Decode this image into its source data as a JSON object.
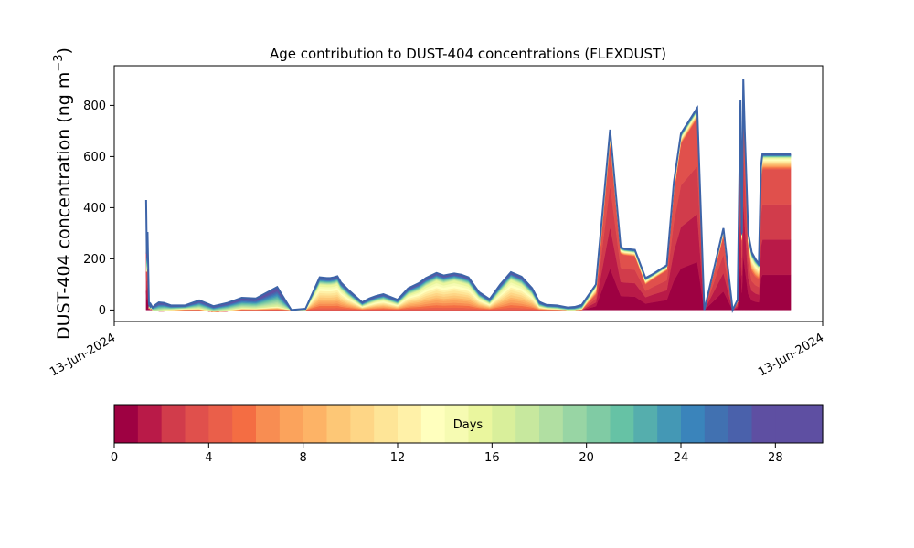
{
  "chart_data": {
    "type": "area",
    "title": "Age contribution to DUST-404 concentrations (FLEXDUST)",
    "ylabel": "DUST-404 concentration (ng m",
    "ylabel_sup": "−3",
    "ylabel_close": ")",
    "xlabel": "",
    "x_ticks": [
      "13-Jun-2024",
      "13-Jun-2024"
    ],
    "y_ticks": [
      0,
      200,
      400,
      600,
      800
    ],
    "ylim": [
      -45,
      955
    ],
    "xlim": [
      0,
      1
    ],
    "grid": false,
    "x": [
      0.045,
      0.046,
      0.047,
      0.049,
      0.05,
      0.051,
      0.052,
      0.054,
      0.058,
      0.063,
      0.07,
      0.08,
      0.1,
      0.12,
      0.14,
      0.16,
      0.18,
      0.2,
      0.23,
      0.25,
      0.27,
      0.29,
      0.3,
      0.305,
      0.31,
      0.315,
      0.32,
      0.33,
      0.35,
      0.36,
      0.37,
      0.38,
      0.4,
      0.415,
      0.43,
      0.44,
      0.455,
      0.465,
      0.48,
      0.49,
      0.5,
      0.515,
      0.53,
      0.545,
      0.56,
      0.575,
      0.59,
      0.6,
      0.61,
      0.625,
      0.64,
      0.65,
      0.66,
      0.68,
      0.7,
      0.715,
      0.72,
      0.735,
      0.75,
      0.76,
      0.78,
      0.79,
      0.8,
      0.823,
      0.833,
      0.86,
      0.873,
      0.88,
      0.884,
      0.886,
      0.888,
      0.89,
      0.895,
      0.9,
      0.905,
      0.91,
      0.913,
      0.915,
      0.917,
      0.92,
      0.925,
      0.935,
      0.945,
      0.955
    ],
    "total": [
      430,
      220,
      305,
      20,
      30,
      12,
      20,
      10,
      20,
      30,
      28,
      18,
      18,
      38,
      15,
      28,
      48,
      45,
      90,
      0,
      5,
      128,
      125,
      125,
      128,
      132,
      108,
      80,
      30,
      45,
      55,
      62,
      40,
      85,
      105,
      125,
      145,
      135,
      143,
      138,
      128,
      70,
      42,
      100,
      148,
      130,
      85,
      32,
      20,
      18,
      10,
      12,
      20,
      100,
      705,
      245,
      240,
      235,
      125,
      140,
      175,
      500,
      690,
      790,
      0,
      320,
      0,
      40,
      820,
      300,
      905,
      710,
      300,
      225,
      200,
      180,
      560,
      610,
      610,
      610,
      610,
      610,
      610,
      610
    ],
    "fresh_days_0_4": [
      300,
      150,
      200,
      5,
      10,
      3,
      5,
      0,
      -3,
      -5,
      -5,
      -3,
      0,
      0,
      -8,
      -5,
      0,
      0,
      0,
      0,
      0,
      0,
      0,
      0,
      0,
      0,
      0,
      0,
      0,
      0,
      0,
      0,
      0,
      0,
      0,
      0,
      0,
      0,
      0,
      0,
      0,
      0,
      0,
      0,
      0,
      0,
      0,
      0,
      0,
      0,
      0,
      0,
      0,
      60,
      650,
      220,
      215,
      210,
      100,
      120,
      155,
      460,
      650,
      750,
      0,
      290,
      0,
      30,
      780,
      270,
      860,
      670,
      250,
      150,
      130,
      120,
      500,
      550,
      550,
      550,
      550,
      550,
      550,
      550
    ],
    "mid_days_4_16": [
      0,
      0,
      0,
      3,
      5,
      2,
      3,
      0,
      0,
      2,
      5,
      5,
      5,
      7,
      3,
      5,
      8,
      7,
      15,
      0,
      0,
      100,
      98,
      98,
      100,
      105,
      80,
      55,
      15,
      25,
      35,
      40,
      22,
      60,
      75,
      95,
      115,
      105,
      115,
      108,
      100,
      48,
      25,
      72,
      118,
      100,
      60,
      14,
      8,
      5,
      0,
      0,
      5,
      30,
      40,
      15,
      15,
      15,
      15,
      12,
      12,
      25,
      25,
      25,
      0,
      20,
      0,
      5,
      25,
      20,
      30,
      25,
      35,
      55,
      50,
      45,
      45,
      45,
      45,
      45,
      45,
      45,
      45,
      45
    ],
    "colorbar": {
      "label": "Days",
      "min": 0,
      "max": 30,
      "ticks": [
        0,
        4,
        8,
        12,
        16,
        20,
        24,
        28
      ],
      "colors": [
        "#9e0142",
        "#b91a48",
        "#d13c4b",
        "#e0504c",
        "#ea5f4a",
        "#f46d43",
        "#f88d52",
        "#fba35c",
        "#fdb366",
        "#fdc776",
        "#fed686",
        "#fee597",
        "#fff1a8",
        "#ffffbe",
        "#f6fbb2",
        "#eaf69e",
        "#d9ef9b",
        "#c7e89e",
        "#b1dfa2",
        "#98d5a4",
        "#80cba4",
        "#66c2a5",
        "#55aead",
        "#4498b5",
        "#3a84bb",
        "#4171b1",
        "#4a61ab",
        "#5e4fa2",
        "#5e4fa2",
        "#5e4fa2"
      ]
    }
  }
}
